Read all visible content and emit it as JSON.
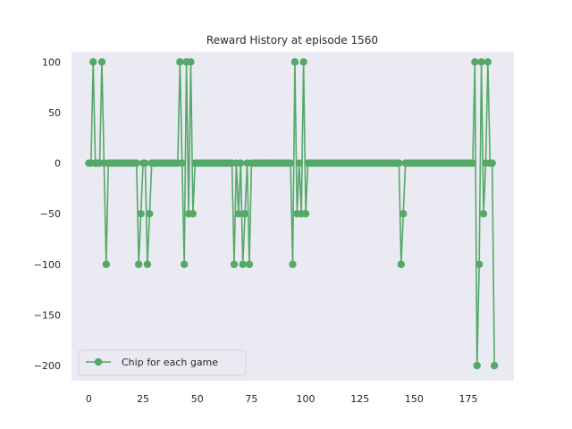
{
  "chart_data": {
    "type": "line",
    "title": "Reward History at episode 1560",
    "xlabel": "",
    "ylabel": "",
    "xlim": [
      -8,
      196
    ],
    "ylim": [
      -215,
      110
    ],
    "xticks": [
      0,
      25,
      50,
      75,
      100,
      125,
      150,
      175
    ],
    "yticks": [
      100,
      50,
      0,
      -50,
      -100,
      -150,
      -200
    ],
    "grid": false,
    "background": "#eaeaf2",
    "series_color": "#55a868",
    "legend_position": "lower-left",
    "series": [
      {
        "name": "Chip for each game",
        "x": [
          0,
          1,
          2,
          3,
          4,
          5,
          6,
          7,
          8,
          9,
          10,
          11,
          12,
          13,
          14,
          15,
          16,
          17,
          18,
          19,
          20,
          21,
          22,
          23,
          24,
          25,
          26,
          27,
          28,
          29,
          30,
          31,
          32,
          33,
          34,
          35,
          36,
          37,
          38,
          39,
          40,
          41,
          42,
          43,
          44,
          45,
          46,
          47,
          48,
          49,
          50,
          51,
          52,
          53,
          54,
          55,
          56,
          57,
          58,
          59,
          60,
          61,
          62,
          63,
          64,
          65,
          66,
          67,
          68,
          69,
          70,
          71,
          72,
          73,
          74,
          75,
          76,
          77,
          78,
          79,
          80,
          81,
          82,
          83,
          84,
          85,
          86,
          87,
          88,
          89,
          90,
          91,
          92,
          93,
          94,
          95,
          96,
          97,
          98,
          99,
          100,
          101,
          102,
          103,
          104,
          105,
          106,
          107,
          108,
          109,
          110,
          111,
          112,
          113,
          114,
          115,
          116,
          117,
          118,
          119,
          120,
          121,
          122,
          123,
          124,
          125,
          126,
          127,
          128,
          129,
          130,
          131,
          132,
          133,
          134,
          135,
          136,
          137,
          138,
          139,
          140,
          141,
          142,
          143,
          144,
          145,
          146,
          147,
          148,
          149,
          150,
          151,
          152,
          153,
          154,
          155,
          156,
          157,
          158,
          159,
          160,
          161,
          162,
          163,
          164,
          165,
          166,
          167,
          168,
          169,
          170,
          171,
          172,
          173,
          174,
          175,
          176,
          177,
          178,
          179,
          180,
          181,
          182,
          183,
          184,
          185,
          186,
          187
        ],
        "y": [
          0,
          0,
          100,
          0,
          0,
          0,
          100,
          0,
          -100,
          0,
          0,
          0,
          0,
          0,
          0,
          0,
          0,
          0,
          0,
          0,
          0,
          0,
          0,
          -100,
          -50,
          0,
          0,
          -100,
          -50,
          0,
          0,
          0,
          0,
          0,
          0,
          0,
          0,
          0,
          0,
          0,
          0,
          0,
          100,
          0,
          -100,
          100,
          -50,
          100,
          -50,
          0,
          0,
          0,
          0,
          0,
          0,
          0,
          0,
          0,
          0,
          0,
          0,
          0,
          0,
          0,
          0,
          0,
          0,
          -100,
          0,
          -50,
          0,
          -100,
          -50,
          0,
          -100,
          0,
          0,
          0,
          0,
          0,
          0,
          0,
          0,
          0,
          0,
          0,
          0,
          0,
          0,
          0,
          0,
          0,
          0,
          0,
          -100,
          100,
          -50,
          0,
          -50,
          100,
          -50,
          0,
          0,
          0,
          0,
          0,
          0,
          0,
          0,
          0,
          0,
          0,
          0,
          0,
          0,
          0,
          0,
          0,
          0,
          0,
          0,
          0,
          0,
          0,
          0,
          0,
          0,
          0,
          0,
          0,
          0,
          0,
          0,
          0,
          0,
          0,
          0,
          0,
          0,
          0,
          0,
          0,
          0,
          0,
          -100,
          -50,
          0,
          0,
          0,
          0,
          0,
          0,
          0,
          0,
          0,
          0,
          0,
          0,
          0,
          0,
          0,
          0,
          0,
          0,
          0,
          0,
          0,
          0,
          0,
          0,
          0,
          0,
          0,
          0,
          0,
          0,
          0,
          0,
          100,
          -200,
          -100,
          100,
          -50,
          0,
          100,
          0,
          0,
          -200
        ]
      }
    ]
  }
}
